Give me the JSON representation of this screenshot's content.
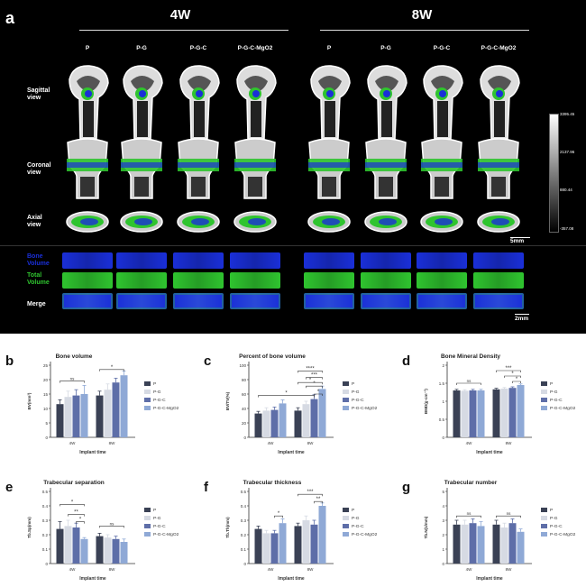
{
  "panel_a": {
    "label": "a",
    "groups": [
      "4W",
      "8W"
    ],
    "columns": [
      "P",
      "P-G",
      "P-G-C",
      "P-G-C-MgO2",
      "P",
      "P-G",
      "P-G-C",
      "P-G-C-MgO2"
    ],
    "row_labels": [
      "Sagittal view",
      "Coronal view",
      "Axial view"
    ],
    "volume_labels": [
      "Bone Volume",
      "Total Volume",
      "Merge"
    ],
    "colorbar_ticks": [
      "3395.45",
      "2137.96",
      "880.44",
      "-357.08"
    ],
    "scale_bar_1": "5mm",
    "scale_bar_2": "2mm",
    "colors": {
      "bone_volume": "#1a2fd8",
      "total_volume": "#2fc42f",
      "background": "#000000"
    }
  },
  "legend": {
    "entries": [
      "P",
      "P-G",
      "P-G-C",
      "P-G-C-MgO2"
    ],
    "colors": [
      "#3a4155",
      "#d6dae3",
      "#5e6ea8",
      "#8fa9d6"
    ]
  },
  "chart_data": [
    {
      "id": "b",
      "type": "bar",
      "title": "Bone volume",
      "ylabel": "BV(mm³)",
      "xlabel": "Implant time",
      "categories": [
        "4W",
        "8W"
      ],
      "ylim": [
        0,
        25
      ],
      "yticks": [
        0,
        5,
        10,
        15,
        20,
        25
      ],
      "series": [
        {
          "name": "P",
          "values": [
            11.5,
            14.5
          ]
        },
        {
          "name": "P-G",
          "values": [
            14,
            16.5
          ]
        },
        {
          "name": "P-G-C",
          "values": [
            14.5,
            19
          ]
        },
        {
          "name": "P-G-C-MgO2",
          "values": [
            15,
            21.5
          ]
        }
      ],
      "errors": [
        [
          1.5,
          1.5
        ],
        [
          2,
          2
        ],
        [
          2,
          1.5
        ],
        [
          3,
          1.5
        ]
      ],
      "annotations": [
        {
          "text": "ns",
          "group": 0,
          "from": 0,
          "to": 3,
          "y": 19.5
        },
        {
          "text": "*",
          "group": 1,
          "from": 0,
          "to": 3,
          "y": 23.5
        }
      ]
    },
    {
      "id": "c",
      "type": "bar",
      "title": "Percent of bone volume",
      "ylabel": "BV/TV(%)",
      "xlabel": "Implant time",
      "categories": [
        "4W",
        "8W"
      ],
      "ylim": [
        0,
        100
      ],
      "yticks": [
        0,
        20,
        40,
        60,
        80,
        100
      ],
      "series": [
        {
          "name": "P",
          "values": [
            33,
            37
          ]
        },
        {
          "name": "P-G",
          "values": [
            37,
            46
          ]
        },
        {
          "name": "P-G-C",
          "values": [
            38,
            53
          ]
        },
        {
          "name": "P-G-C-MgO2",
          "values": [
            47,
            67
          ]
        }
      ],
      "errors": [
        [
          3,
          4
        ],
        [
          4,
          4
        ],
        [
          4,
          6
        ],
        [
          5,
          4
        ]
      ],
      "annotations": [
        {
          "text": "*",
          "group": -1,
          "from": 0,
          "to": 6,
          "y": 58
        },
        {
          "text": "*",
          "group": 1,
          "from": 0,
          "to": 3,
          "y": 76
        },
        {
          "text": "*",
          "group": 1,
          "from": 1,
          "to": 3,
          "y": 71
        },
        {
          "text": "*",
          "group": 1,
          "from": 2,
          "to": 3,
          "y": 60
        },
        {
          "text": "***",
          "group": 1,
          "from": 1,
          "to": 3,
          "y": 83
        },
        {
          "text": "****",
          "group": 1,
          "from": 0,
          "to": 3,
          "y": 92
        }
      ]
    },
    {
      "id": "d",
      "type": "bar",
      "title": "Bone Mineral Density",
      "ylabel": "BMD(g·cm⁻³)",
      "xlabel": "Implant time",
      "categories": [
        "4W",
        "8W"
      ],
      "ylim": [
        0,
        2.0
      ],
      "yticks": [
        0,
        0.5,
        1.0,
        1.5,
        2.0
      ],
      "series": [
        {
          "name": "P",
          "values": [
            1.3,
            1.33
          ]
        },
        {
          "name": "P-G",
          "values": [
            1.29,
            1.35
          ]
        },
        {
          "name": "P-G-C",
          "values": [
            1.3,
            1.37
          ]
        },
        {
          "name": "P-G-C-MgO2",
          "values": [
            1.3,
            1.45
          ]
        }
      ],
      "errors": [
        [
          0.03,
          0.03
        ],
        [
          0.03,
          0.03
        ],
        [
          0.03,
          0.03
        ],
        [
          0.03,
          0.03
        ]
      ],
      "annotations": [
        {
          "text": "ns",
          "group": 0,
          "from": 0,
          "to": 3,
          "y": 1.5
        },
        {
          "text": "*",
          "group": 1,
          "from": 2,
          "to": 3,
          "y": 1.55
        },
        {
          "text": "*",
          "group": 1,
          "from": 1,
          "to": 3,
          "y": 1.7
        },
        {
          "text": "***",
          "group": 1,
          "from": 0,
          "to": 3,
          "y": 1.85
        }
      ]
    },
    {
      "id": "e",
      "type": "bar",
      "title": "Trabecular separation",
      "ylabel": "Tb.Sp(mm)",
      "xlabel": "Implant time",
      "categories": [
        "4W",
        "8W"
      ],
      "ylim": [
        0,
        0.5
      ],
      "yticks": [
        0,
        0.1,
        0.2,
        0.3,
        0.4,
        0.5
      ],
      "series": [
        {
          "name": "P",
          "values": [
            0.24,
            0.19
          ]
        },
        {
          "name": "P-G",
          "values": [
            0.26,
            0.18
          ]
        },
        {
          "name": "P-G-C",
          "values": [
            0.25,
            0.17
          ]
        },
        {
          "name": "P-G-C-MgO2",
          "values": [
            0.17,
            0.15
          ]
        }
      ],
      "errors": [
        [
          0.05,
          0.02
        ],
        [
          0.04,
          0.02
        ],
        [
          0.03,
          0.02
        ],
        [
          0.01,
          0.02
        ]
      ],
      "annotations": [
        {
          "text": "*",
          "group": 0,
          "from": 2,
          "to": 3,
          "y": 0.29
        },
        {
          "text": "**",
          "group": 0,
          "from": 1,
          "to": 3,
          "y": 0.34
        },
        {
          "text": "*",
          "group": 0,
          "from": 0,
          "to": 3,
          "y": 0.41
        },
        {
          "text": "ns",
          "group": 1,
          "from": 0,
          "to": 3,
          "y": 0.26
        }
      ]
    },
    {
      "id": "f",
      "type": "bar",
      "title": "Trabecular thickness",
      "ylabel": "Tb.Th(mm)",
      "xlabel": "Implant time",
      "categories": [
        "4W",
        "8W"
      ],
      "ylim": [
        0,
        0.5
      ],
      "yticks": [
        0,
        0.1,
        0.2,
        0.3,
        0.4,
        0.5
      ],
      "series": [
        {
          "name": "P",
          "values": [
            0.24,
            0.26
          ]
        },
        {
          "name": "P-G",
          "values": [
            0.21,
            0.3
          ]
        },
        {
          "name": "P-G-C",
          "values": [
            0.21,
            0.27
          ]
        },
        {
          "name": "P-G-C-MgO2",
          "values": [
            0.28,
            0.4
          ]
        }
      ],
      "errors": [
        [
          0.02,
          0.02
        ],
        [
          0.02,
          0.03
        ],
        [
          0.02,
          0.03
        ],
        [
          0.03,
          0.02
        ]
      ],
      "annotations": [
        {
          "text": "*",
          "group": 0,
          "from": 2,
          "to": 3,
          "y": 0.33
        },
        {
          "text": "**",
          "group": 1,
          "from": 2,
          "to": 3,
          "y": 0.43
        },
        {
          "text": "***",
          "group": 1,
          "from": 0,
          "to": 3,
          "y": 0.48
        }
      ]
    },
    {
      "id": "g",
      "type": "bar",
      "title": "Trabecular number",
      "ylabel": "Tb.N(1/mm)",
      "xlabel": "Implant time",
      "categories": [
        "4W",
        "8W"
      ],
      "ylim": [
        0,
        5
      ],
      "yticks": [
        0,
        1,
        2,
        3,
        4,
        5
      ],
      "series": [
        {
          "name": "P",
          "values": [
            2.7,
            2.7
          ]
        },
        {
          "name": "P-G",
          "values": [
            2.7,
            2.5
          ]
        },
        {
          "name": "P-G-C",
          "values": [
            2.8,
            2.8
          ]
        },
        {
          "name": "P-G-C-MgO2",
          "values": [
            2.6,
            2.2
          ]
        }
      ],
      "errors": [
        [
          0.3,
          0.3
        ],
        [
          0.3,
          0.3
        ],
        [
          0.3,
          0.3
        ],
        [
          0.3,
          0.2
        ]
      ],
      "annotations": [
        {
          "text": "ns",
          "group": 0,
          "from": 0,
          "to": 3,
          "y": 3.3
        },
        {
          "text": "ns",
          "group": 1,
          "from": 0,
          "to": 3,
          "y": 3.3
        }
      ]
    }
  ]
}
